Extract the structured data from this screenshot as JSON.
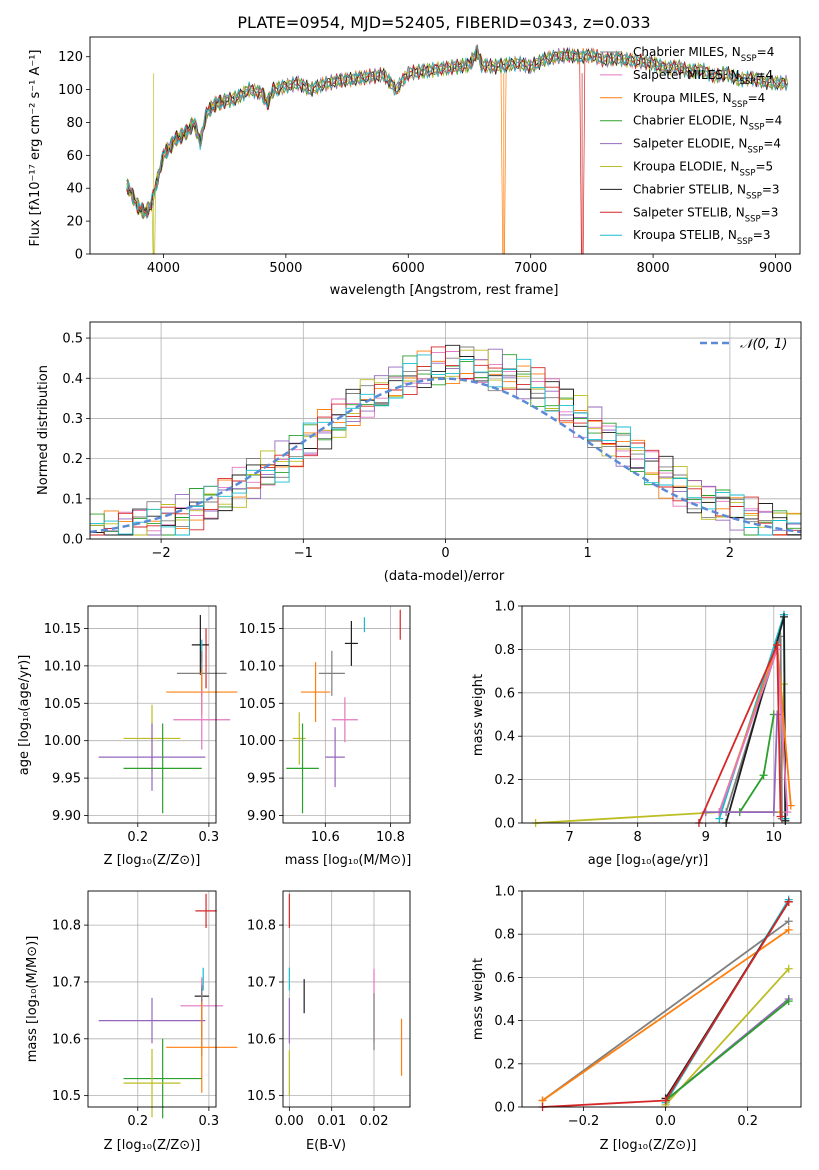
{
  "colors": {
    "Chabrier MILES": "#7f7f7f",
    "Salpeter MILES": "#e377c2",
    "Kroupa MILES": "#ff7f0e",
    "Chabrier ELODIE": "#2ca02c",
    "Salpeter ELODIE": "#9467bd",
    "Kroupa ELODIE": "#bcbd22",
    "Chabrier STELIB": "#1f1f1f",
    "Salpeter STELIB": "#d62728",
    "Kroupa STELIB": "#17becf",
    "normal": "#5b8bd6"
  },
  "chart_data": [
    {
      "id": "spectrum",
      "type": "line",
      "title": "PLATE=0954, MJD=52405, FIBERID=0343, z=0.033",
      "xlabel": "wavelength [Angstrom, rest frame]",
      "ylabel": "Flux [fλ10⁻¹⁷ erg cm⁻² s⁻¹ A⁻¹]",
      "xlim": [
        3400,
        9200
      ],
      "ylim": [
        0,
        132
      ],
      "xticks": [
        4000,
        5000,
        6000,
        7000,
        8000,
        9000
      ],
      "yticks": [
        0,
        20,
        40,
        60,
        80,
        100,
        120
      ],
      "grid": false,
      "legend_position": "top-right",
      "legend": [
        {
          "label": "Chabrier MILES, N",
          "sub": "SSP",
          "val": "=4"
        },
        {
          "label": "Salpeter MILES, N",
          "sub": "SSP",
          "val": "=4"
        },
        {
          "label": "Kroupa MILES, N",
          "sub": "SSP",
          "val": "=4"
        },
        {
          "label": "Chabrier ELODIE, N",
          "sub": "SSP",
          "val": "=4"
        },
        {
          "label": "Salpeter ELODIE, N",
          "sub": "SSP",
          "val": "=4"
        },
        {
          "label": "Kroupa ELODIE, N",
          "sub": "SSP",
          "val": "=5"
        },
        {
          "label": "Chabrier STELIB, N",
          "sub": "SSP",
          "val": "=3"
        },
        {
          "label": "Salpeter STELIB, N",
          "sub": "SSP",
          "val": "=3"
        },
        {
          "label": "Kroupa STELIB, N",
          "sub": "SSP",
          "val": "=3"
        }
      ],
      "x": [
        3700,
        3750,
        3800,
        3850,
        3900,
        3950,
        4000,
        4050,
        4100,
        4150,
        4200,
        4250,
        4300,
        4350,
        4400,
        4450,
        4500,
        4600,
        4700,
        4800,
        4850,
        4900,
        5000,
        5100,
        5200,
        5300,
        5400,
        5500,
        5600,
        5700,
        5800,
        5900,
        6000,
        6100,
        6200,
        6300,
        6400,
        6500,
        6563,
        6600,
        6700,
        6800,
        6900,
        7000,
        7100,
        7200,
        7300,
        7400,
        7500,
        7600,
        7700,
        7800,
        7900,
        8000,
        8100,
        8200,
        8300,
        8400,
        8500,
        8600,
        8700,
        8800,
        8900,
        9000,
        9100
      ],
      "flux": [
        42,
        35,
        28,
        25,
        30,
        45,
        60,
        65,
        70,
        72,
        75,
        80,
        68,
        85,
        90,
        92,
        93,
        95,
        100,
        98,
        92,
        100,
        102,
        104,
        100,
        103,
        105,
        106,
        107,
        108,
        109,
        100,
        110,
        111,
        112,
        113,
        114,
        115,
        123,
        115,
        114,
        115,
        116,
        114,
        118,
        120,
        121,
        120,
        121,
        118,
        119,
        118,
        117,
        116,
        113,
        114,
        111,
        112,
        108,
        110,
        106,
        107,
        105,
        104,
        104
      ],
      "dropouts": [
        {
          "series": "Kroupa ELODIE",
          "x": 3920
        },
        {
          "series": "Kroupa MILES",
          "x": 6780
        },
        {
          "series": "Salpeter STELIB",
          "x": 7420
        }
      ]
    },
    {
      "id": "residuals",
      "type": "step",
      "xlabel": "(data-model)/error",
      "ylabel": "Normed distribution",
      "xlim": [
        -2.5,
        2.5
      ],
      "ylim": [
        0,
        0.54
      ],
      "xticks": [
        -2,
        -1,
        0,
        1,
        2
      ],
      "yticks": [
        0.0,
        0.1,
        0.2,
        0.3,
        0.4,
        0.5
      ],
      "grid": true,
      "legend_position": "top-right",
      "legend": [
        {
          "label": "𝒩(0, 1)"
        }
      ],
      "bin_width": 0.1
    },
    {
      "id": "age_vs_Z",
      "type": "errorbar",
      "xlabel": "Z [log₁₀(Z/Z⊙)]",
      "ylabel": "age  [log₁₀(age/yr)]",
      "xlim": [
        0.13,
        0.31
      ],
      "ylim": [
        9.89,
        10.18
      ],
      "xticks": [
        0.2,
        0.3
      ],
      "yticks": [
        9.9,
        9.95,
        10.0,
        10.05,
        10.1,
        10.15
      ],
      "grid": true,
      "points": [
        {
          "series": "Salpeter STELIB",
          "x": 0.296,
          "y": 10.11,
          "xerr": 0.0,
          "yerr": 0.04
        },
        {
          "series": "Chabrier STELIB",
          "x": 0.288,
          "y": 10.128,
          "xerr": 0.012,
          "yerr": 0.04
        },
        {
          "series": "Kroupa STELIB",
          "x": 0.29,
          "y": 10.12,
          "xerr": 0.0,
          "yerr": 0.015
        },
        {
          "series": "Chabrier MILES",
          "x": 0.29,
          "y": 10.09,
          "xerr": 0.035,
          "yerr": 0.03
        },
        {
          "series": "Kroupa MILES",
          "x": 0.29,
          "y": 10.065,
          "xerr": 0.05,
          "yerr": 0.03
        },
        {
          "series": "Salpeter MILES",
          "x": 0.29,
          "y": 10.028,
          "xerr": 0.04,
          "yerr": 0.04
        },
        {
          "series": "Kroupa ELODIE",
          "x": 0.22,
          "y": 10.003,
          "xerr": 0.04,
          "yerr": 0.045
        },
        {
          "series": "Salpeter ELODIE",
          "x": 0.22,
          "y": 9.978,
          "xerr": 0.075,
          "yerr": 0.045
        },
        {
          "series": "Chabrier ELODIE",
          "x": 0.235,
          "y": 9.963,
          "xerr": 0.055,
          "yerr": 0.06
        }
      ]
    },
    {
      "id": "age_vs_mass",
      "type": "errorbar",
      "xlabel": "mass [log₁₀(M/M⊙)]",
      "ylabel": "",
      "xlim": [
        10.47,
        10.86
      ],
      "ylim": [
        9.89,
        10.18
      ],
      "xticks": [
        10.6,
        10.8
      ],
      "yticks": [
        9.9,
        9.95,
        10.0,
        10.05,
        10.1,
        10.15
      ],
      "grid": true,
      "points": [
        {
          "series": "Salpeter STELIB",
          "x": 10.83,
          "y": 10.155,
          "xerr": 0.0,
          "yerr": 0.02
        },
        {
          "series": "Kroupa STELIB",
          "x": 10.72,
          "y": 10.155,
          "xerr": 0.0,
          "yerr": 0.01
        },
        {
          "series": "Chabrier STELIB",
          "x": 10.68,
          "y": 10.13,
          "xerr": 0.02,
          "yerr": 0.03
        },
        {
          "series": "Chabrier MILES",
          "x": 10.62,
          "y": 10.09,
          "xerr": 0.04,
          "yerr": 0.03
        },
        {
          "series": "Kroupa MILES",
          "x": 10.57,
          "y": 10.065,
          "xerr": 0.045,
          "yerr": 0.04
        },
        {
          "series": "Salpeter MILES",
          "x": 10.66,
          "y": 10.028,
          "xerr": 0.04,
          "yerr": 0.03
        },
        {
          "series": "Kroupa ELODIE",
          "x": 10.52,
          "y": 10.003,
          "xerr": 0.02,
          "yerr": 0.035
        },
        {
          "series": "Salpeter ELODIE",
          "x": 10.63,
          "y": 9.978,
          "xerr": 0.03,
          "yerr": 0.04
        },
        {
          "series": "Chabrier ELODIE",
          "x": 10.53,
          "y": 9.963,
          "xerr": 0.05,
          "yerr": 0.06
        }
      ]
    },
    {
      "id": "weights_vs_age",
      "type": "line",
      "xlabel": "age  [log₁₀(age/yr)]",
      "ylabel": "mass weight",
      "xlim": [
        6.3,
        10.4
      ],
      "ylim": [
        0,
        1.0
      ],
      "xticks": [
        7,
        8,
        9,
        10
      ],
      "yticks": [
        0.0,
        0.2,
        0.4,
        0.6,
        0.8,
        1.0
      ],
      "grid": true,
      "series": [
        {
          "name": "Kroupa ELODIE",
          "x": [
            6.5,
            9.2,
            10.1,
            10.15
          ],
          "y": [
            0.0,
            0.05,
            0.05,
            0.64
          ]
        },
        {
          "name": "Chabrier MILES",
          "x": [
            9.3,
            10.1,
            10.12
          ],
          "y": [
            0.05,
            0.86,
            0.02
          ]
        },
        {
          "name": "Kroupa STELIB",
          "x": [
            9.2,
            10.15,
            10.17
          ],
          "y": [
            0.02,
            0.96,
            0.02
          ]
        },
        {
          "name": "Chabrier STELIB",
          "x": [
            9.3,
            10.15,
            10.17
          ],
          "y": [
            0.0,
            0.95,
            0.01
          ]
        },
        {
          "name": "Kroupa MILES",
          "x": [
            9.2,
            10.05,
            10.25
          ],
          "y": [
            0.05,
            0.82,
            0.08
          ]
        },
        {
          "name": "Salpeter MILES",
          "x": [
            9.2,
            10.05,
            10.2
          ],
          "y": [
            0.05,
            0.8,
            0.05
          ]
        },
        {
          "name": "Chabrier ELODIE",
          "x": [
            9.5,
            9.85,
            10.0
          ],
          "y": [
            0.05,
            0.22,
            0.5
          ]
        },
        {
          "name": "Salpeter ELODIE",
          "x": [
            9.0,
            10.0,
            10.05
          ],
          "y": [
            0.05,
            0.05,
            0.5
          ]
        },
        {
          "name": "Salpeter STELIB",
          "x": [
            8.9,
            10.05,
            10.1
          ],
          "y": [
            0.0,
            0.82,
            0.03
          ]
        }
      ]
    },
    {
      "id": "mass_vs_Z",
      "type": "errorbar",
      "xlabel": "Z [log₁₀(Z/Z⊙)]",
      "ylabel": "mass [log₁₀(M/M⊙)]",
      "xlim": [
        0.13,
        0.31
      ],
      "ylim": [
        10.48,
        10.86
      ],
      "xticks": [
        0.2,
        0.3
      ],
      "yticks": [
        10.5,
        10.6,
        10.7,
        10.8
      ],
      "grid": true,
      "points": [
        {
          "series": "Salpeter STELIB",
          "x": 0.296,
          "y": 10.825,
          "xerr": 0.015,
          "yerr": 0.03
        },
        {
          "series": "Kroupa STELIB",
          "x": 0.292,
          "y": 10.705,
          "xerr": 0.0,
          "yerr": 0.02
        },
        {
          "series": "Chabrier STELIB",
          "x": 0.29,
          "y": 10.675,
          "xerr": 0.01,
          "yerr": 0.02
        },
        {
          "series": "Salpeter MILES",
          "x": 0.29,
          "y": 10.658,
          "xerr": 0.03,
          "yerr": 0.05
        },
        {
          "series": "Salpeter ELODIE",
          "x": 0.22,
          "y": 10.632,
          "xerr": 0.075,
          "yerr": 0.04
        },
        {
          "series": "Chabrier MILES",
          "x": 0.29,
          "y": 10.63,
          "xerr": 0.0,
          "yerr": 0.06
        },
        {
          "series": "Kroupa MILES",
          "x": 0.29,
          "y": 10.585,
          "xerr": 0.05,
          "yerr": 0.08
        },
        {
          "series": "Chabrier ELODIE",
          "x": 0.235,
          "y": 10.53,
          "xerr": 0.055,
          "yerr": 0.07
        },
        {
          "series": "Kroupa ELODIE",
          "x": 0.22,
          "y": 10.522,
          "xerr": 0.04,
          "yerr": 0.06
        }
      ]
    },
    {
      "id": "mass_vs_ebv",
      "type": "errorbar",
      "xlabel": "E(B-V)",
      "ylabel": "",
      "xlim": [
        -0.0015,
        0.0285
      ],
      "ylim": [
        10.48,
        10.86
      ],
      "xticks": [
        0.0,
        0.01,
        0.02
      ],
      "yticks": [
        10.5,
        10.6,
        10.7,
        10.8
      ],
      "grid": true,
      "points": [
        {
          "series": "Salpeter STELIB",
          "x": 0.0,
          "y": 10.825,
          "xerr": 0.0,
          "yerr": 0.03
        },
        {
          "series": "Kroupa STELIB",
          "x": 0.0,
          "y": 10.705,
          "xerr": 0.0,
          "yerr": 0.02
        },
        {
          "series": "Chabrier STELIB",
          "x": 0.0035,
          "y": 10.675,
          "xerr": 0.0,
          "yerr": 0.03
        },
        {
          "series": "Salpeter MILES",
          "x": 0.02,
          "y": 10.658,
          "xerr": 0.0,
          "yerr": 0.065
        },
        {
          "series": "Chabrier MILES",
          "x": 0.02,
          "y": 10.63,
          "xerr": 0.0,
          "yerr": 0.05
        },
        {
          "series": "Salpeter ELODIE",
          "x": 0.0,
          "y": 10.632,
          "xerr": 0.0,
          "yerr": 0.04
        },
        {
          "series": "Kroupa MILES",
          "x": 0.0265,
          "y": 10.585,
          "xerr": 0.0,
          "yerr": 0.05
        },
        {
          "series": "Kroupa ELODIE",
          "x": 0.0,
          "y": 10.54,
          "xerr": 0.0,
          "yerr": 0.04
        }
      ]
    },
    {
      "id": "weights_vs_Z",
      "type": "line",
      "xlabel": "Z [log₁₀(Z/Z⊙)]",
      "ylabel": "mass weight",
      "xlim": [
        -0.35,
        0.33
      ],
      "ylim": [
        0,
        1.0
      ],
      "xticks": [
        -0.2,
        0.0,
        0.2
      ],
      "yticks": [
        0.0,
        0.2,
        0.4,
        0.6,
        0.8,
        1.0
      ],
      "grid": true,
      "series": [
        {
          "name": "Chabrier MILES",
          "x": [
            -0.3,
            0.3
          ],
          "y": [
            0.03,
            0.86
          ]
        },
        {
          "name": "Kroupa MILES",
          "x": [
            -0.3,
            0.3
          ],
          "y": [
            0.03,
            0.82
          ]
        },
        {
          "name": "Kroupa STELIB",
          "x": [
            0.0,
            0.3
          ],
          "y": [
            0.02,
            0.96
          ]
        },
        {
          "name": "Chabrier STELIB",
          "x": [
            0.0,
            0.3
          ],
          "y": [
            0.04,
            0.95
          ]
        },
        {
          "name": "Kroupa ELODIE",
          "x": [
            0.0,
            0.3
          ],
          "y": [
            0.01,
            0.64
          ]
        },
        {
          "name": "Salpeter ELODIE",
          "x": [
            0.0,
            0.3
          ],
          "y": [
            0.03,
            0.5
          ]
        },
        {
          "name": "Chabrier ELODIE",
          "x": [
            0.0,
            0.3
          ],
          "y": [
            0.03,
            0.49
          ]
        },
        {
          "name": "Salpeter STELIB",
          "x": [
            -0.3,
            0.0,
            0.3
          ],
          "y": [
            0.0,
            0.03,
            0.95
          ]
        }
      ]
    }
  ]
}
